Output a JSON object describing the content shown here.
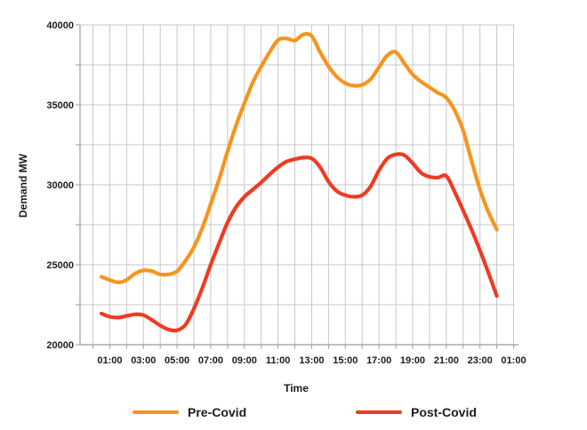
{
  "chart_data": {
    "type": "line",
    "title": "",
    "xlabel": "Time",
    "ylabel": "Demand MW",
    "ylim": [
      20000,
      40000
    ],
    "y_major_ticks": [
      20000,
      25000,
      30000,
      35000,
      40000
    ],
    "y_tick_labels": [
      "20000",
      "25000",
      "30000",
      "35000",
      "40000"
    ],
    "y_minor_step": 2500,
    "x_hours_range": [
      0,
      25
    ],
    "x_tick_labels": [
      "01:00",
      "03:00",
      "05:00",
      "07:00",
      "09:00",
      "11:00",
      "13:00",
      "15:00",
      "17:00",
      "19:00",
      "21:00",
      "23:00",
      "01:00"
    ],
    "x_tick_hours": [
      1,
      3,
      5,
      7,
      9,
      11,
      13,
      15,
      17,
      19,
      21,
      23,
      25
    ],
    "grid": {
      "vertical_step_hours": 1,
      "horizontal_step_mw": 2500,
      "color": "#c7c7c7",
      "axis_color": "#9b9b9b"
    },
    "legend_position": "bottom",
    "series": [
      {
        "name": "Pre-Covid",
        "color": "#F7941E",
        "points": [
          [
            0.5,
            24250
          ],
          [
            1,
            24050
          ],
          [
            1.5,
            23900
          ],
          [
            2,
            24050
          ],
          [
            2.5,
            24450
          ],
          [
            3,
            24650
          ],
          [
            3.5,
            24600
          ],
          [
            4,
            24400
          ],
          [
            4.5,
            24400
          ],
          [
            5,
            24600
          ],
          [
            5.5,
            25250
          ],
          [
            6,
            26100
          ],
          [
            6.5,
            27300
          ],
          [
            7,
            28800
          ],
          [
            7.5,
            30350
          ],
          [
            8,
            32100
          ],
          [
            8.5,
            33700
          ],
          [
            9,
            35100
          ],
          [
            9.5,
            36400
          ],
          [
            10,
            37400
          ],
          [
            10.5,
            38300
          ],
          [
            11,
            39050
          ],
          [
            11.5,
            39150
          ],
          [
            12,
            39020
          ],
          [
            12.5,
            39400
          ],
          [
            13,
            39300
          ],
          [
            13.5,
            38300
          ],
          [
            14,
            37400
          ],
          [
            14.5,
            36750
          ],
          [
            15,
            36350
          ],
          [
            15.5,
            36200
          ],
          [
            16,
            36250
          ],
          [
            16.5,
            36600
          ],
          [
            17,
            37350
          ],
          [
            17.5,
            38100
          ],
          [
            18,
            38300
          ],
          [
            18.5,
            37600
          ],
          [
            19,
            36900
          ],
          [
            19.5,
            36450
          ],
          [
            20,
            36100
          ],
          [
            20.5,
            35750
          ],
          [
            21,
            35450
          ],
          [
            21.5,
            34650
          ],
          [
            22,
            33400
          ],
          [
            22.5,
            31500
          ],
          [
            23,
            29700
          ],
          [
            23.5,
            28300
          ],
          [
            24,
            27200
          ]
        ]
      },
      {
        "name": "Post-Covid",
        "color": "#EE3B23",
        "points": [
          [
            0.5,
            21950
          ],
          [
            1,
            21750
          ],
          [
            1.5,
            21700
          ],
          [
            2,
            21800
          ],
          [
            2.5,
            21900
          ],
          [
            3,
            21850
          ],
          [
            3.5,
            21550
          ],
          [
            4,
            21200
          ],
          [
            4.5,
            20950
          ],
          [
            5,
            20900
          ],
          [
            5.5,
            21250
          ],
          [
            6,
            22250
          ],
          [
            6.5,
            23550
          ],
          [
            7,
            25000
          ],
          [
            7.5,
            26350
          ],
          [
            8,
            27650
          ],
          [
            8.5,
            28600
          ],
          [
            9,
            29250
          ],
          [
            9.5,
            29700
          ],
          [
            10,
            30150
          ],
          [
            10.5,
            30650
          ],
          [
            11,
            31100
          ],
          [
            11.5,
            31450
          ],
          [
            12,
            31600
          ],
          [
            12.5,
            31700
          ],
          [
            13,
            31650
          ],
          [
            13.5,
            31100
          ],
          [
            14,
            30200
          ],
          [
            14.5,
            29600
          ],
          [
            15,
            29350
          ],
          [
            15.5,
            29250
          ],
          [
            16,
            29350
          ],
          [
            16.5,
            29900
          ],
          [
            17,
            30900
          ],
          [
            17.5,
            31650
          ],
          [
            18,
            31900
          ],
          [
            18.5,
            31850
          ],
          [
            19,
            31350
          ],
          [
            19.5,
            30750
          ],
          [
            20,
            30500
          ],
          [
            20.5,
            30450
          ],
          [
            21,
            30550
          ],
          [
            21.5,
            29550
          ],
          [
            22,
            28400
          ],
          [
            22.5,
            27200
          ],
          [
            23,
            25900
          ],
          [
            23.5,
            24500
          ],
          [
            24,
            23050
          ]
        ]
      }
    ]
  },
  "text_color": "#1c1c1c"
}
